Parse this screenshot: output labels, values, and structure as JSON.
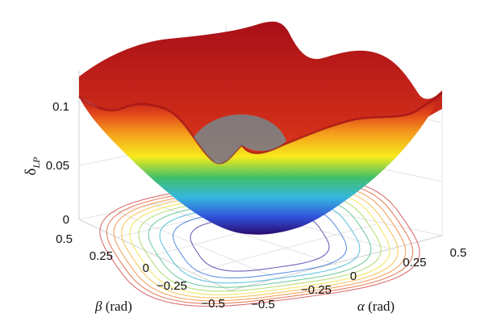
{
  "chart_data": {
    "type": "surface3d",
    "title": "",
    "z_label": {
      "main": "δ",
      "sub": "LP"
    },
    "x_label": {
      "symbol": "α",
      "unit": "(rad)"
    },
    "y_label": {
      "symbol": "β",
      "unit": "(rad)"
    },
    "x_range": [
      -0.5,
      0.5
    ],
    "y_range": [
      -0.5,
      0.5
    ],
    "z_range": [
      0,
      0.12
    ],
    "x_ticks": [
      "−0.5",
      "−0.25",
      "0",
      "0.25",
      "0.5"
    ],
    "y_ticks": [
      "−0.5",
      "−0.25",
      "0",
      "0.25",
      "0.5"
    ],
    "z_ticks": [
      "0",
      "0.05",
      "0.1"
    ],
    "colormap": "jet",
    "surface_min": 0.0,
    "surface_max": 0.125,
    "contour_levels": [
      0.01,
      0.02,
      0.03,
      0.04,
      0.05,
      0.06,
      0.07,
      0.08,
      0.09,
      0.1
    ],
    "grid": true
  }
}
